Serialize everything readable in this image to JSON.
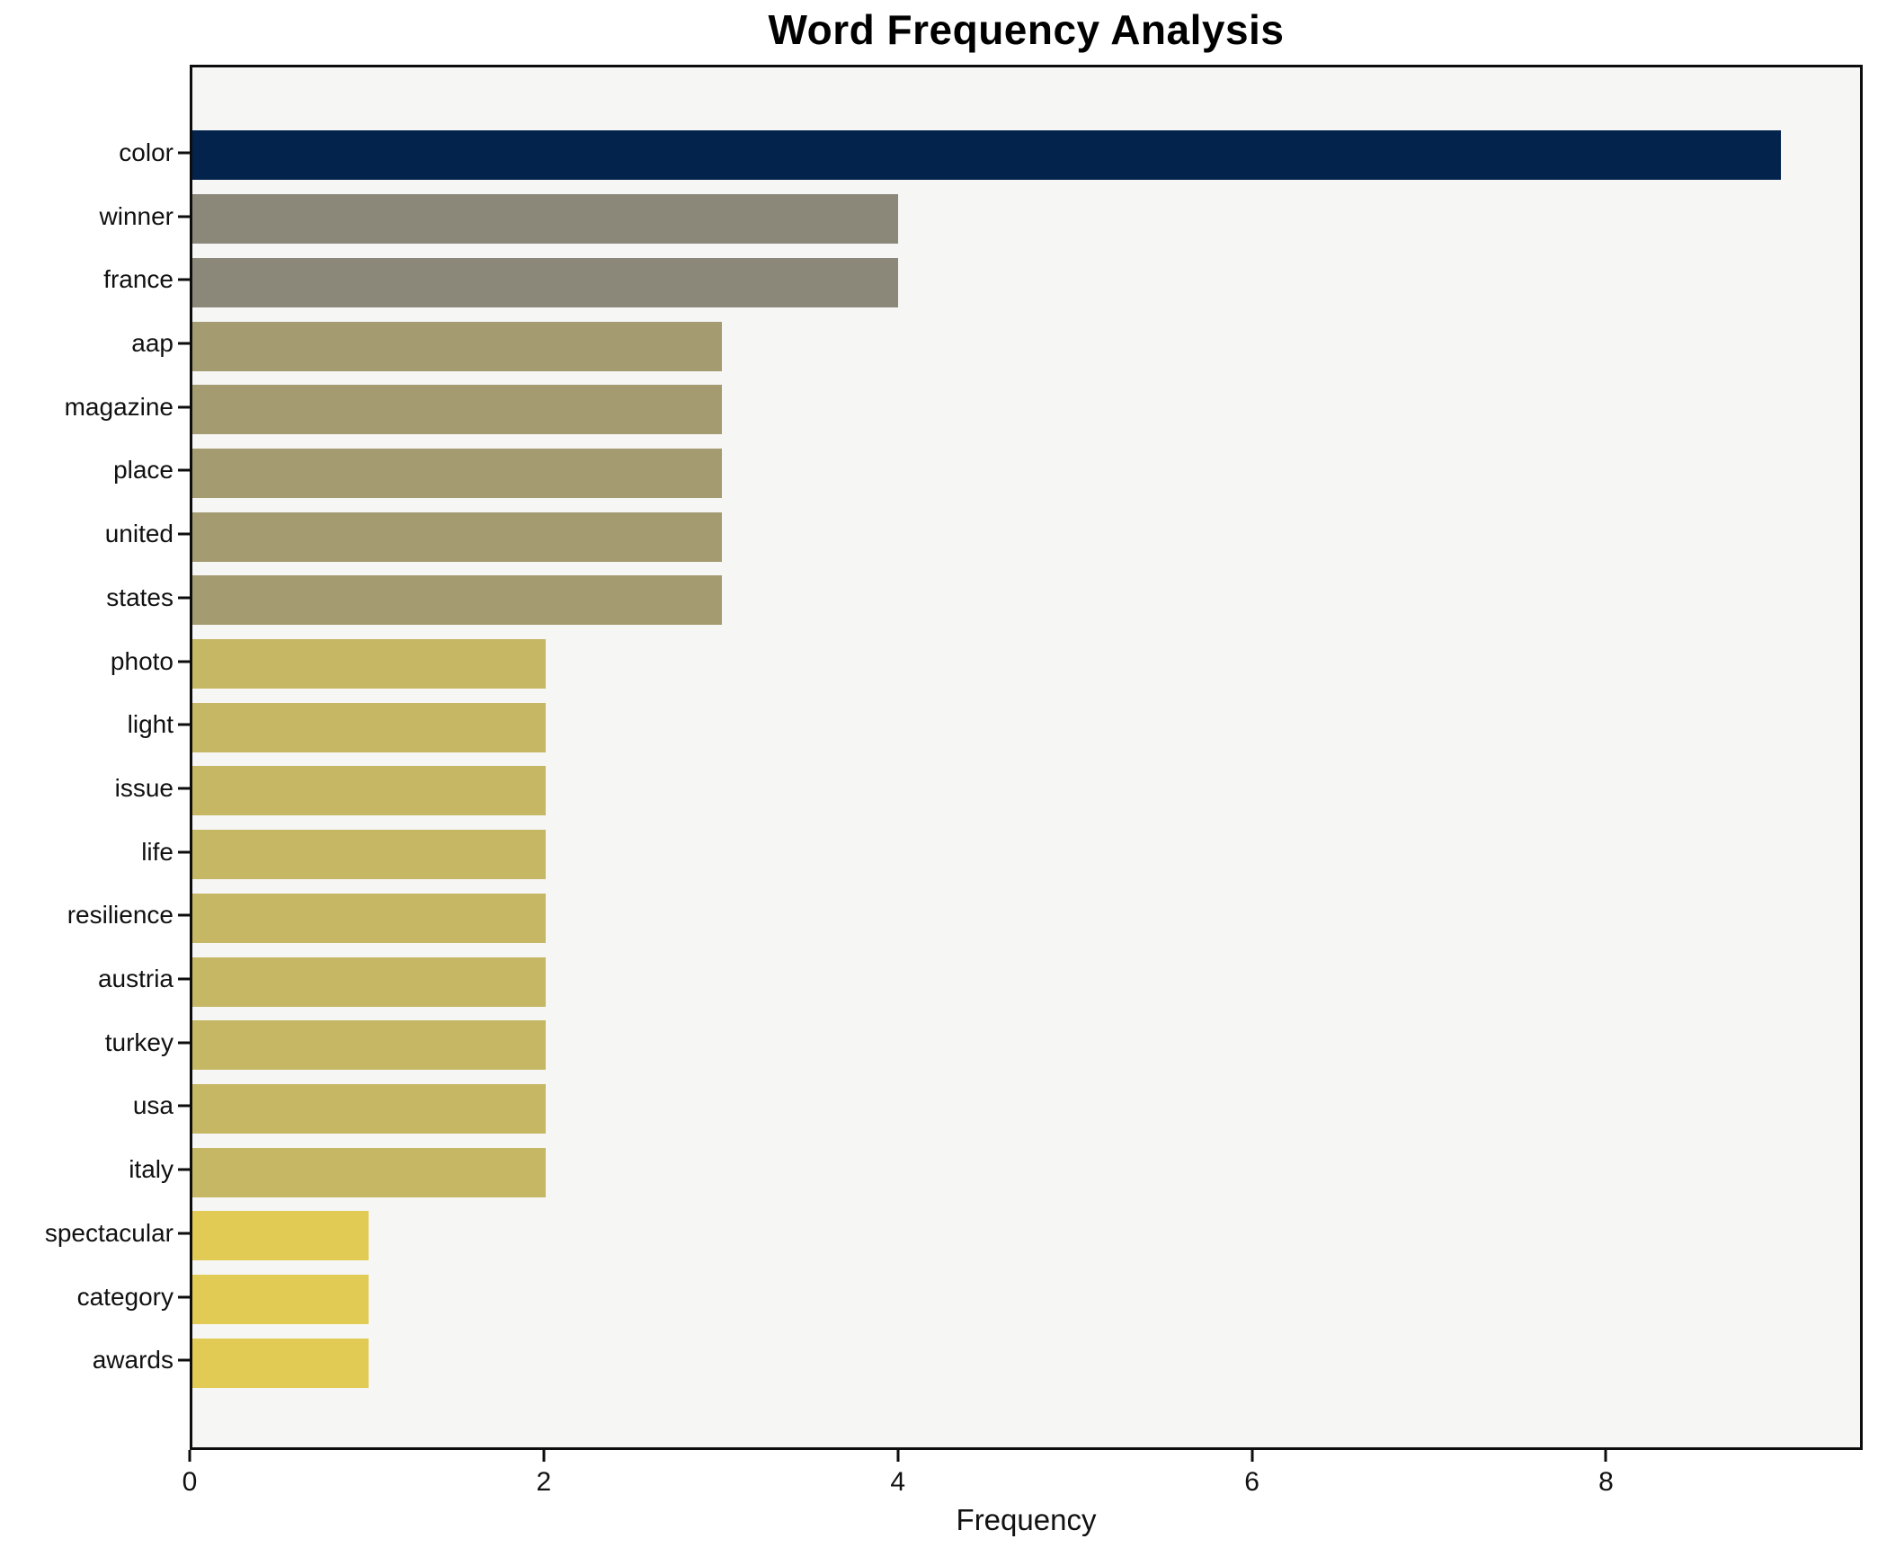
{
  "chart_data": {
    "type": "bar",
    "orientation": "horizontal",
    "title": "Word Frequency Analysis",
    "xlabel": "Frequency",
    "ylabel": "",
    "categories": [
      "color",
      "winner",
      "france",
      "aap",
      "magazine",
      "place",
      "united",
      "states",
      "photo",
      "light",
      "issue",
      "life",
      "resilience",
      "austria",
      "turkey",
      "usa",
      "italy",
      "spectacular",
      "category",
      "awards"
    ],
    "values": [
      9,
      4,
      4,
      3,
      3,
      3,
      3,
      3,
      2,
      2,
      2,
      2,
      2,
      2,
      2,
      2,
      2,
      1,
      1,
      1
    ],
    "bar_colors": [
      "#03234c",
      "#8b8879",
      "#8b8879",
      "#a49b70",
      "#a49b70",
      "#a49b70",
      "#a49b70",
      "#a49b70",
      "#c6b765",
      "#c6b765",
      "#c6b765",
      "#c6b765",
      "#c6b765",
      "#c6b765",
      "#c6b765",
      "#c6b765",
      "#c6b765",
      "#e2cb55",
      "#e2cb55",
      "#e2cb55"
    ],
    "xticks": [
      0,
      2,
      4,
      6,
      8
    ],
    "xlim": [
      0,
      9.45
    ],
    "grid": false,
    "legend": null,
    "colors": {
      "figure_background": "#ffffff",
      "plot_background": "#f6f6f5",
      "axis_line": "#0d0d0d",
      "text": "#111111"
    }
  }
}
